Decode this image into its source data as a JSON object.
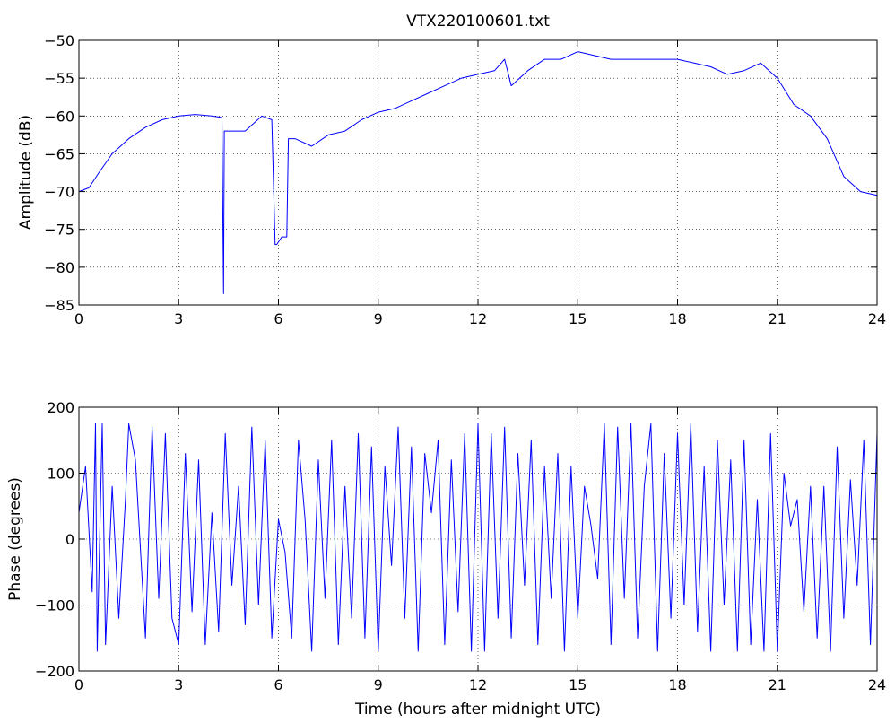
{
  "chart_data": [
    {
      "type": "line",
      "title": "VTX220100601.txt",
      "xlabel": "",
      "ylabel": "Amplitude (dB)",
      "xlim": [
        0,
        24
      ],
      "ylim": [
        -85,
        -50
      ],
      "xticks": [
        "0",
        "3",
        "6",
        "9",
        "12",
        "15",
        "18",
        "21",
        "24"
      ],
      "yticks": [
        "−50",
        "−55",
        "−60",
        "−65",
        "−70",
        "−75",
        "−80",
        "−85"
      ],
      "grid": true,
      "line_color": "#0000ff",
      "series": [
        {
          "x": [
            0,
            0.3,
            0.6,
            1.0,
            1.5,
            2.0,
            2.5,
            3.0,
            3.5,
            4.0,
            4.3,
            4.35,
            4.37,
            4.4,
            4.6,
            5.0,
            5.5,
            5.8,
            5.9,
            5.95,
            6.1,
            6.25,
            6.3,
            6.5,
            7.0,
            7.5,
            8.0,
            8.5,
            9.0,
            9.5,
            10.0,
            10.5,
            11.0,
            11.5,
            12.0,
            12.5,
            12.8,
            13.0,
            13.5,
            14.0,
            14.5,
            15.0,
            15.5,
            16.0,
            16.5,
            17.0,
            17.5,
            18.0,
            18.5,
            19.0,
            19.5,
            20.0,
            20.5,
            21.0,
            21.5,
            22.0,
            22.5,
            23.0,
            23.5,
            24.0
          ],
          "y": [
            -70,
            -69.5,
            -67.5,
            -65,
            -63,
            -61.5,
            -60.5,
            -60,
            -59.8,
            -60,
            -60.2,
            -83.5,
            -62,
            -62,
            -62,
            -62,
            -60,
            -60.5,
            -77,
            -77,
            -76,
            -76,
            -63,
            -63,
            -64,
            -62.5,
            -62,
            -60.5,
            -59.5,
            -59,
            -58,
            -57,
            -56,
            -55,
            -54.5,
            -54,
            -52.5,
            -56,
            -54,
            -52.5,
            -52.5,
            -51.5,
            -52,
            -52.5,
            -52.5,
            -52.5,
            -52.5,
            -52.5,
            -53,
            -53.5,
            -54.5,
            -54,
            -53,
            -55,
            -58.5,
            -60,
            -63,
            -68,
            -70,
            -70.5
          ]
        }
      ]
    },
    {
      "type": "line",
      "title": "",
      "xlabel": "Time (hours after midnight UTC)",
      "ylabel": "Phase (degrees)",
      "xlim": [
        0,
        24
      ],
      "ylim": [
        -200,
        200
      ],
      "xticks": [
        "0",
        "3",
        "6",
        "9",
        "12",
        "15",
        "18",
        "21",
        "24"
      ],
      "yticks": [
        "200",
        "100",
        "0",
        "−100",
        "−200"
      ],
      "grid": true,
      "line_color": "#0000ff",
      "series": [
        {
          "x": [
            0,
            0.2,
            0.4,
            0.5,
            0.55,
            0.7,
            0.8,
            1.0,
            1.2,
            1.4,
            1.5,
            1.7,
            2.0,
            2.2,
            2.4,
            2.6,
            2.8,
            3.0,
            3.2,
            3.4,
            3.6,
            3.8,
            4.0,
            4.2,
            4.4,
            4.6,
            4.8,
            5.0,
            5.2,
            5.4,
            5.6,
            5.8,
            6.0,
            6.2,
            6.4,
            6.6,
            6.8,
            7.0,
            7.2,
            7.4,
            7.6,
            7.8,
            8.0,
            8.2,
            8.4,
            8.6,
            8.8,
            9.0,
            9.2,
            9.4,
            9.6,
            9.8,
            10.0,
            10.2,
            10.4,
            10.6,
            10.8,
            11.0,
            11.2,
            11.4,
            11.6,
            11.8,
            12.0,
            12.2,
            12.4,
            12.6,
            12.8,
            13.0,
            13.2,
            13.4,
            13.6,
            13.8,
            14.0,
            14.2,
            14.4,
            14.6,
            14.8,
            15.0,
            15.2,
            15.4,
            15.6,
            15.8,
            16.0,
            16.2,
            16.4,
            16.6,
            16.8,
            17.0,
            17.2,
            17.4,
            17.6,
            17.8,
            18.0,
            18.2,
            18.4,
            18.6,
            18.8,
            19.0,
            19.2,
            19.4,
            19.6,
            19.8,
            20.0,
            20.2,
            20.4,
            20.6,
            20.8,
            21.0,
            21.2,
            21.4,
            21.6,
            21.8,
            22.0,
            22.2,
            22.4,
            22.6,
            22.8,
            23.0,
            23.2,
            23.4,
            23.6,
            23.8,
            24.0
          ],
          "y": [
            40,
            110,
            -80,
            175,
            -170,
            175,
            -160,
            80,
            -120,
            60,
            175,
            120,
            -150,
            170,
            -90,
            160,
            -120,
            -160,
            130,
            -110,
            120,
            -160,
            40,
            -140,
            160,
            -70,
            80,
            -130,
            170,
            -100,
            150,
            -150,
            30,
            -20,
            -150,
            150,
            30,
            -170,
            120,
            -90,
            150,
            -160,
            80,
            -120,
            160,
            -150,
            140,
            -170,
            110,
            -40,
            170,
            -120,
            140,
            -170,
            130,
            40,
            150,
            -160,
            120,
            -110,
            160,
            -170,
            175,
            -170,
            160,
            -120,
            170,
            -150,
            130,
            -70,
            150,
            -160,
            110,
            -90,
            130,
            -170,
            110,
            -120,
            80,
            20,
            -60,
            175,
            -160,
            170,
            -90,
            175,
            -150,
            80,
            175,
            -170,
            130,
            -120,
            160,
            -100,
            175,
            -140,
            110,
            -170,
            150,
            -100,
            120,
            -170,
            150,
            -160,
            60,
            -170,
            160,
            -170,
            100,
            20,
            60,
            -110,
            80,
            -150,
            80,
            -170,
            140,
            -120,
            90,
            -70,
            150,
            -160,
            160
          ]
        }
      ]
    }
  ]
}
